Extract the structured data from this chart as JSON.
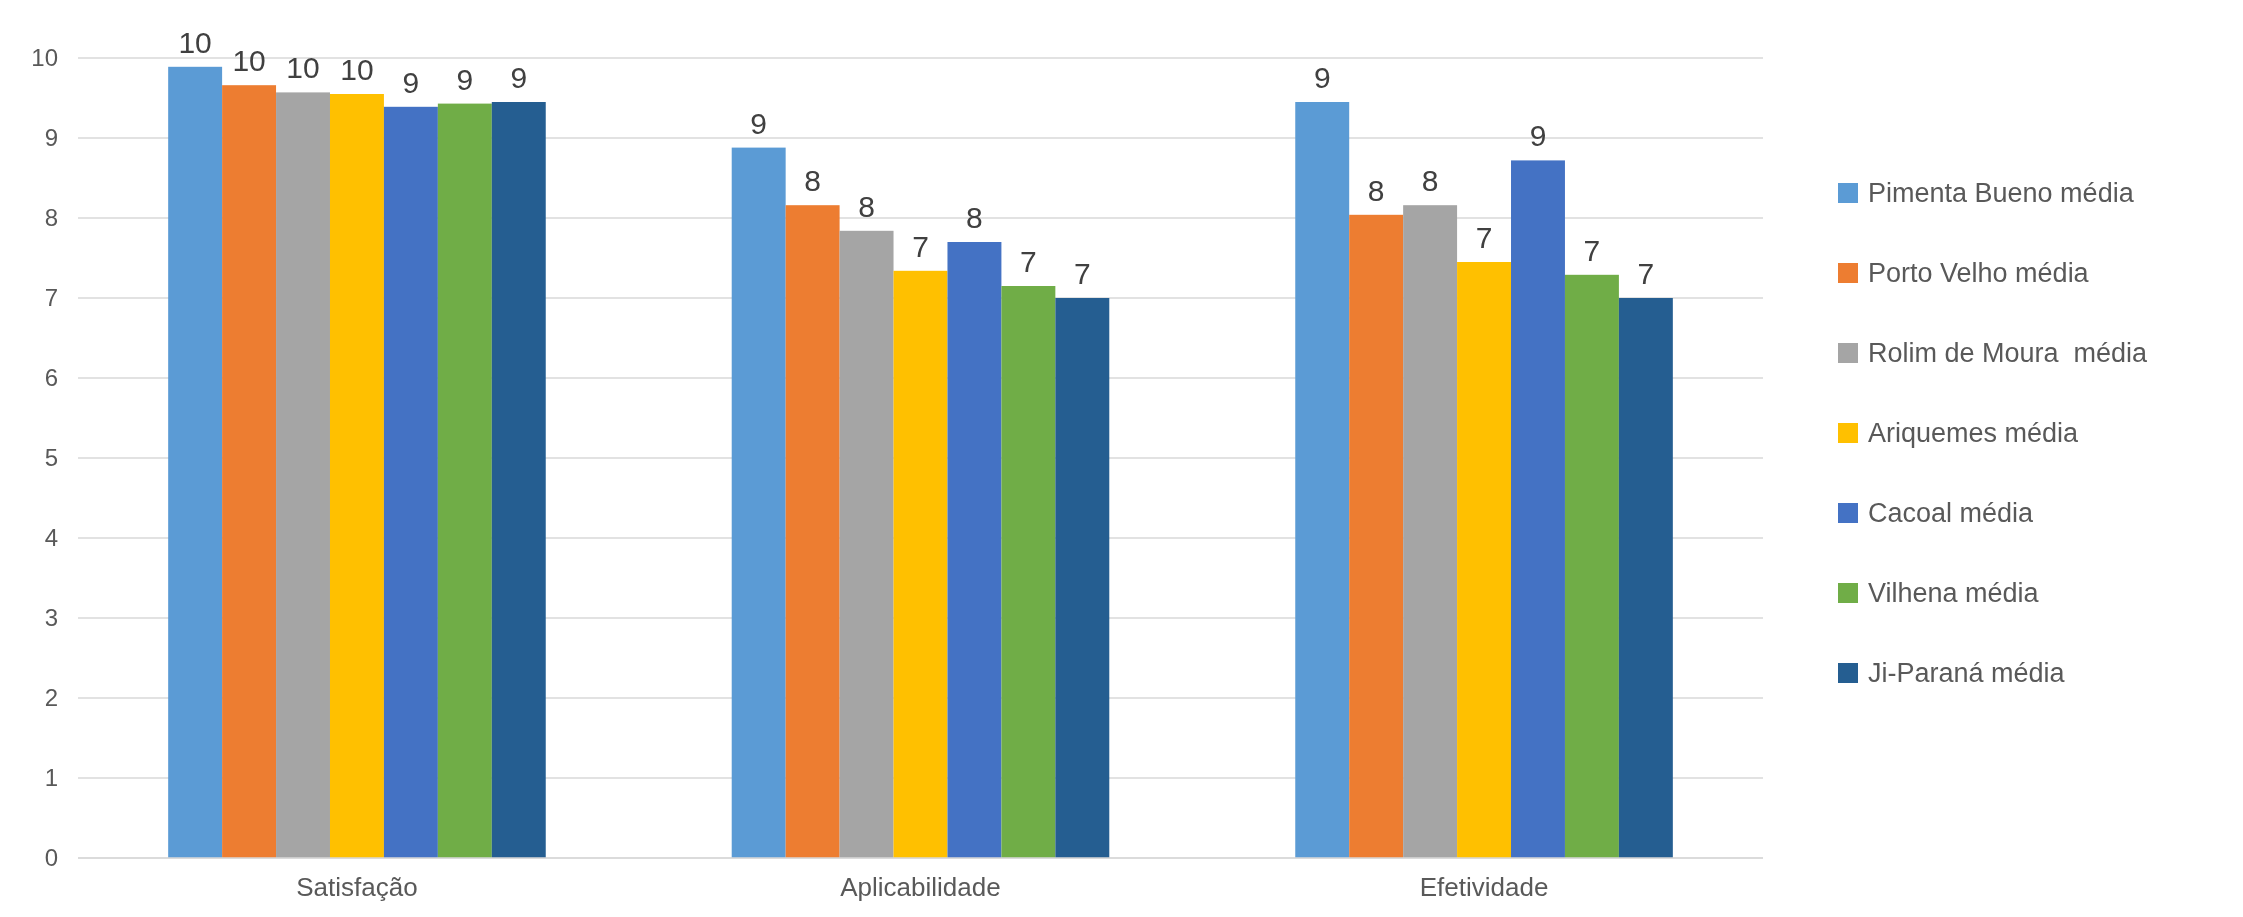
{
  "chart_data": {
    "type": "bar",
    "categories": [
      "Satisfação",
      "Aplicabilidade",
      "Efetividade"
    ],
    "series": [
      {
        "name": "Pimenta Bueno média",
        "color": "#5b9bd5",
        "values": [
          9.89,
          8.88,
          9.45
        ],
        "value_labels": [
          "10",
          "9",
          "9"
        ]
      },
      {
        "name": "Porto Velho média",
        "color": "#ed7d31",
        "values": [
          9.66,
          8.16,
          8.04
        ],
        "value_labels": [
          "10",
          "8",
          "8"
        ]
      },
      {
        "name": "Rolim de Moura  média",
        "color": "#a5a5a5",
        "values": [
          9.57,
          7.84,
          8.16
        ],
        "value_labels": [
          "10",
          "8",
          "8"
        ]
      },
      {
        "name": "Ariquemes média",
        "color": "#ffc000",
        "values": [
          9.55,
          7.34,
          7.45
        ],
        "value_labels": [
          "10",
          "7",
          "7"
        ]
      },
      {
        "name": "Cacoal média",
        "color": "#4472c4",
        "values": [
          9.39,
          7.7,
          8.72
        ],
        "value_labels": [
          "9",
          "8",
          "9"
        ]
      },
      {
        "name": "Vilhena média",
        "color": "#70ad47",
        "values": [
          9.43,
          7.15,
          7.29
        ],
        "value_labels": [
          "9",
          "7",
          "7"
        ]
      },
      {
        "name": "Ji-Paraná média",
        "color": "#255e91",
        "values": [
          9.45,
          7.0,
          7.0
        ],
        "value_labels": [
          "9",
          "7",
          "7"
        ]
      }
    ],
    "ylim": [
      0,
      10
    ],
    "yticks": [
      0,
      1,
      2,
      3,
      4,
      5,
      6,
      7,
      8,
      9,
      10
    ],
    "grid": "y",
    "legend": "right"
  }
}
